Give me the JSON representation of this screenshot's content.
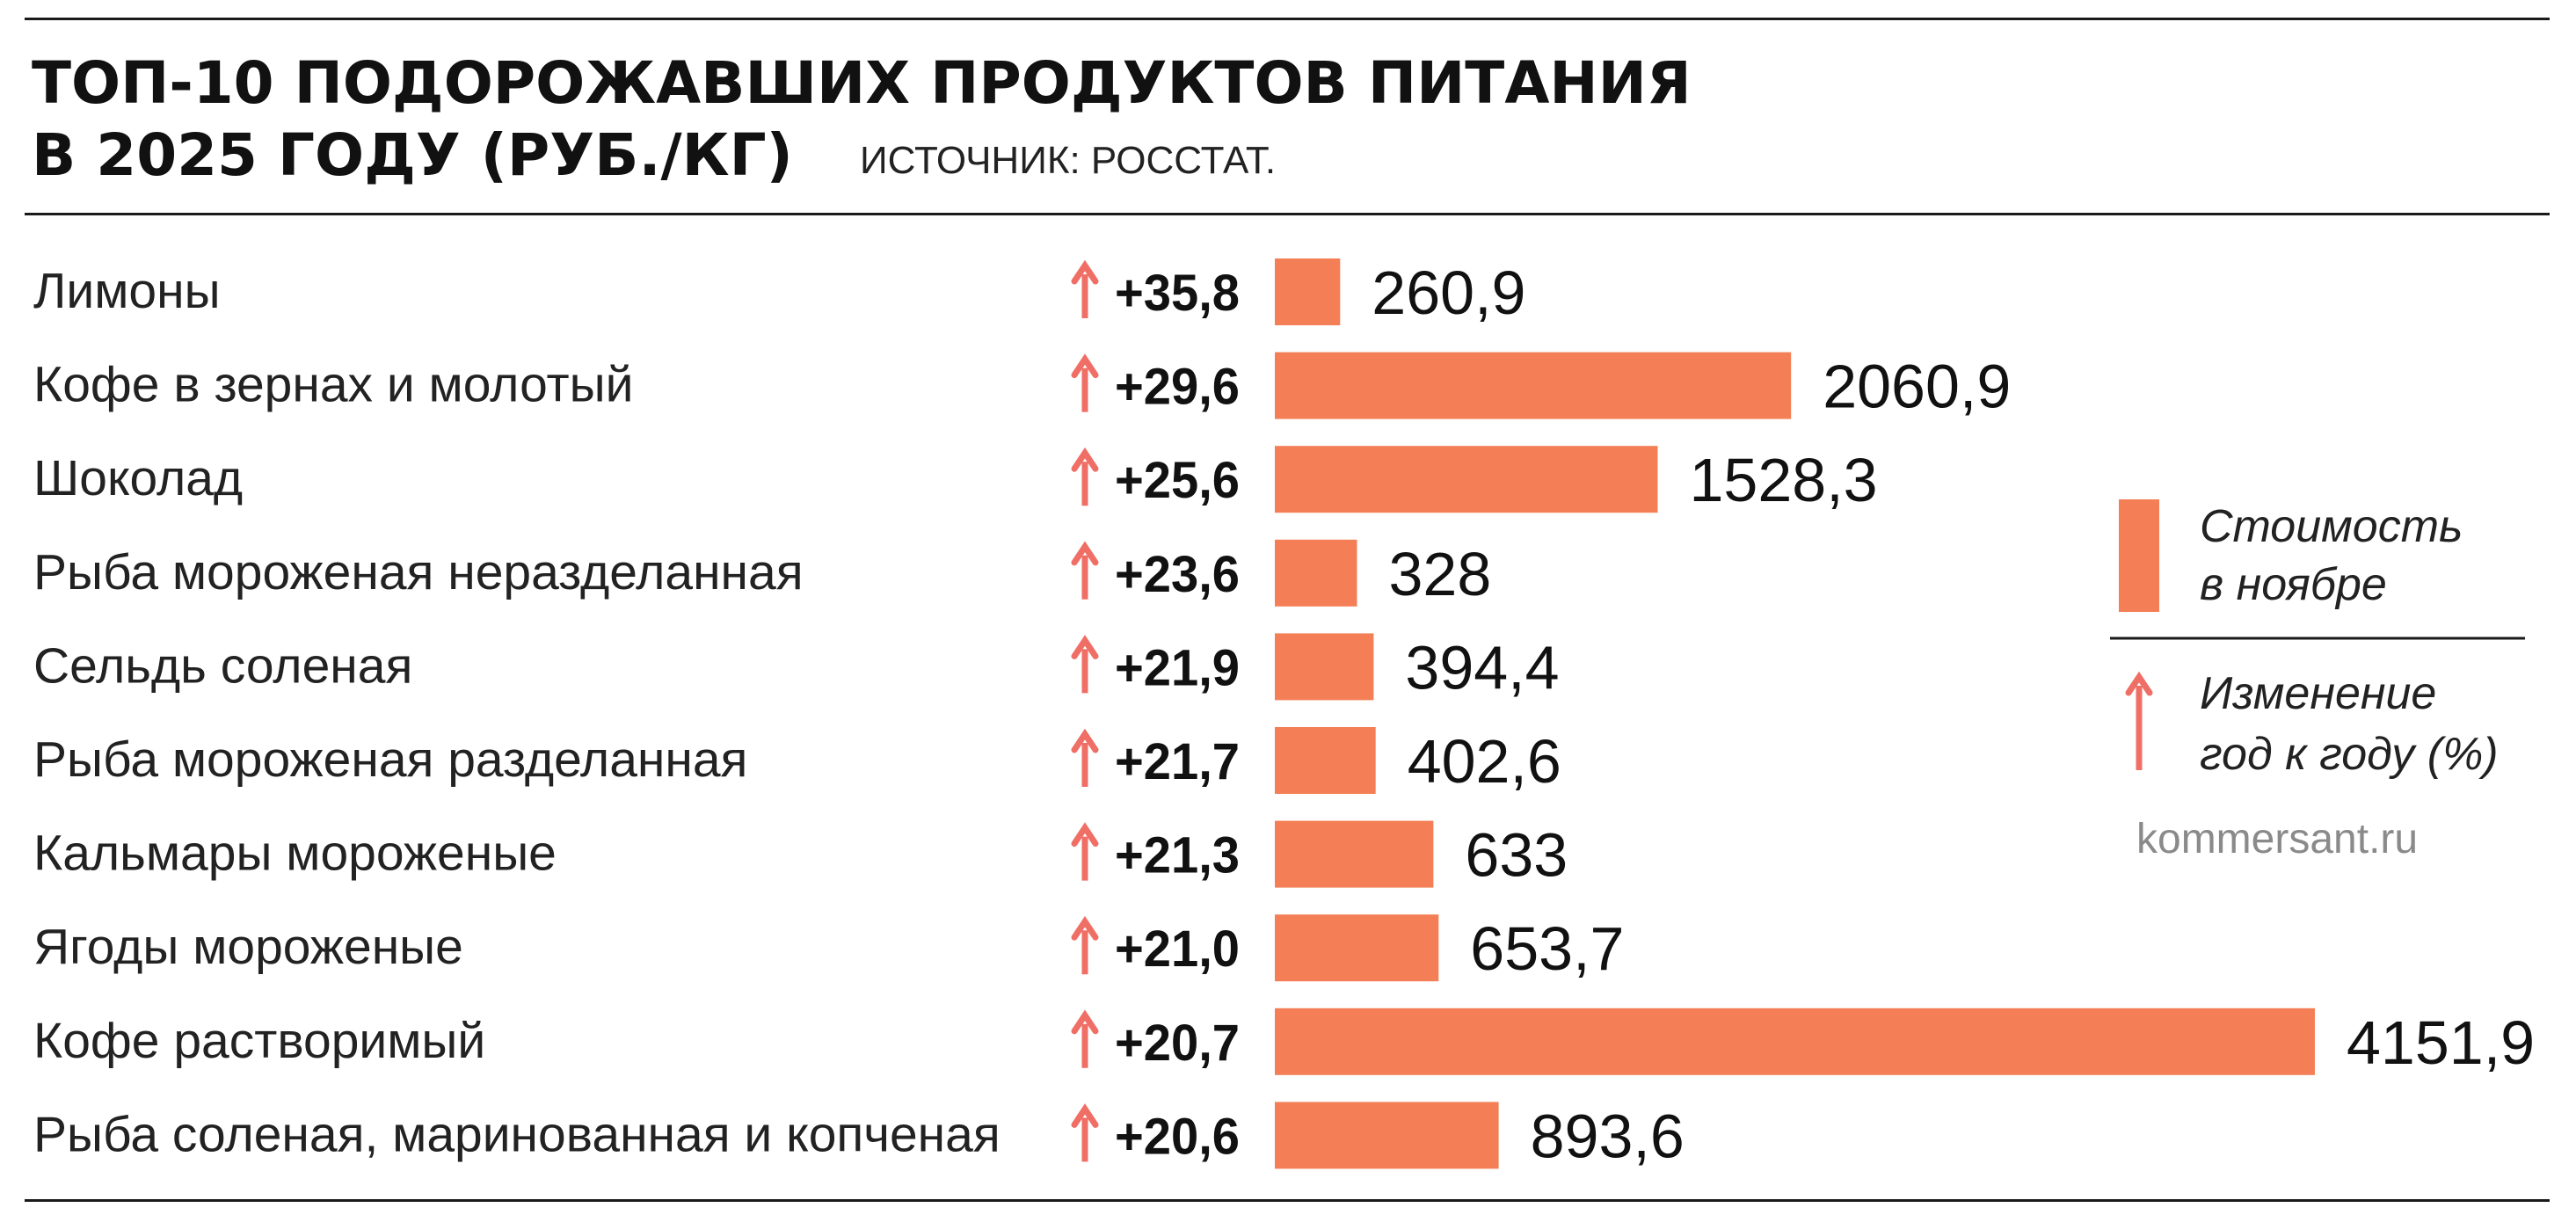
{
  "title": {
    "line1": "ТОП-10 ПОДОРОЖАВШИХ ПРОДУКТОВ ПИТАНИЯ",
    "line2": "В 2025 ГОДУ (РУБ./КГ)",
    "source": "ИСТОЧНИК: РОССТАТ."
  },
  "legend": {
    "cost_line1": "Стоимость",
    "cost_line2": "в ноябре",
    "change_line1": "Изменение",
    "change_line2": "год к году (%)",
    "site": "kommersant.ru"
  },
  "colors": {
    "bar": "#f47f57",
    "arrow": "#ef6f66",
    "rule": "#1a1a1a"
  },
  "chart_data": {
    "type": "bar",
    "orientation": "horizontal",
    "title": "ТОП-10 ПОДОРОЖАВШИХ ПРОДУКТОВ ПИТАНИЯ В 2025 ГОДУ (РУБ./КГ)",
    "xlabel": "",
    "ylabel": "",
    "xlim": [
      0,
      4151.9
    ],
    "grid": false,
    "categories": [
      "Лимоны",
      "Кофе в зернах и молотый",
      "Шоколад",
      "Рыба мороженая неразделанная",
      "Сельдь соленая",
      "Рыба мороженая разделанная",
      "Кальмары мороженые",
      "Ягоды мороженые",
      "Кофе растворимый",
      "Рыба соленая, маринованная и копченая"
    ],
    "series": [
      {
        "name": "Стоимость в ноябре",
        "values": [
          260.9,
          2060.9,
          1528.3,
          328,
          394.4,
          402.6,
          633,
          653.7,
          4151.9,
          893.6
        ],
        "labels": [
          "260,9",
          "2060,9",
          "1528,3",
          "328",
          "394,4",
          "402,6",
          "633",
          "653,7",
          "4151,9",
          "893,6"
        ]
      },
      {
        "name": "Изменение год к году (%)",
        "values": [
          35.8,
          29.6,
          25.6,
          23.6,
          21.9,
          21.7,
          21.3,
          21.0,
          20.7,
          20.6
        ],
        "labels": [
          "+35,8",
          "+29,6",
          "+25,6",
          "+23,6",
          "+21,9",
          "+21,7",
          "+21,3",
          "+21,0",
          "+20,7",
          "+20,6"
        ]
      }
    ]
  }
}
